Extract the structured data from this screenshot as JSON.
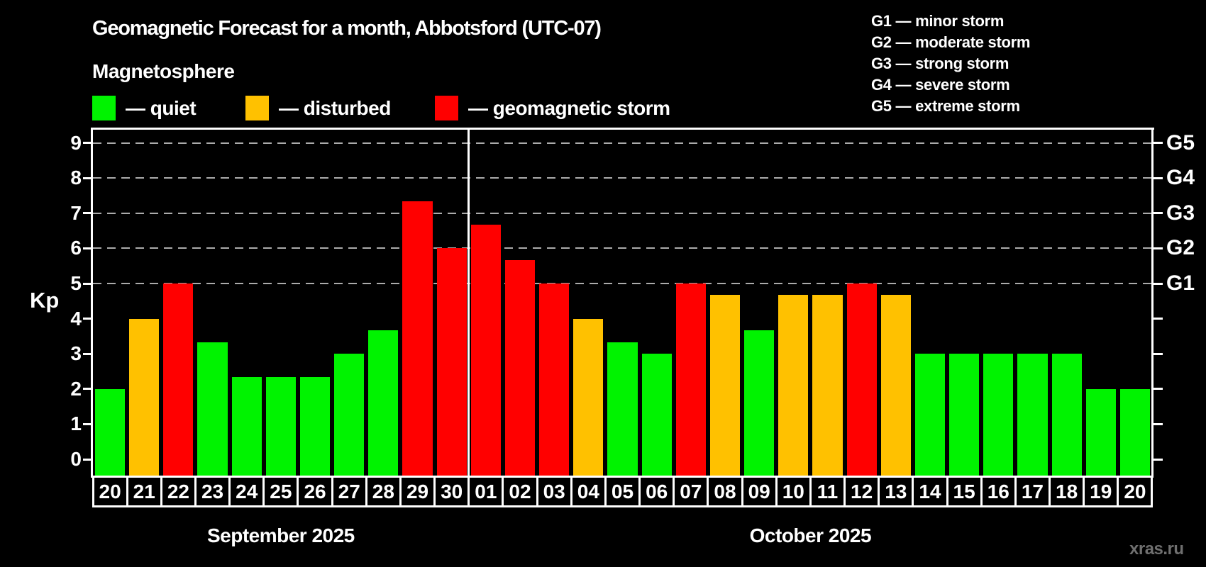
{
  "header": {
    "title": "Geomagnetic Forecast for a month, Abbotsford (UTC-07)",
    "subtitle": "Magnetosphere"
  },
  "legend": {
    "items": [
      {
        "key": "quiet",
        "label": "— quiet",
        "color": "#00f300"
      },
      {
        "key": "disturbed",
        "label": "— disturbed",
        "color": "#ffc100"
      },
      {
        "key": "storm",
        "label": "— geomagnetic storm",
        "color": "#ff0000"
      }
    ]
  },
  "g_legend": {
    "items": [
      "G1 — minor storm",
      "G2 — moderate storm",
      "G3 — strong storm",
      "G4 — severe storm",
      "G5 — extreme storm"
    ]
  },
  "chart_data": {
    "type": "bar",
    "ylabel": "Kp",
    "ylim": [
      0,
      9.4
    ],
    "y_ticks": [
      "0",
      "1",
      "2",
      "3",
      "4",
      "5",
      "6",
      "7",
      "8",
      "9"
    ],
    "gridline_kp": [
      5,
      6,
      7,
      8,
      9
    ],
    "grid": "dashed, only at Kp 5-9",
    "right_axis_labels": [
      {
        "kp": 5,
        "label": "G1"
      },
      {
        "kp": 6,
        "label": "G2"
      },
      {
        "kp": 7,
        "label": "G3"
      },
      {
        "kp": 8,
        "label": "G4"
      },
      {
        "kp": 9,
        "label": "G5"
      }
    ],
    "status_colors": {
      "quiet": "#00f300",
      "disturbed": "#ffc100",
      "storm": "#ff0000"
    },
    "months": [
      {
        "label": "September 2025",
        "from": 0,
        "to": 10
      },
      {
        "label": "October 2025",
        "from": 11,
        "to": 30
      }
    ],
    "month_separator_before_index": 11,
    "days": [
      {
        "day": "20",
        "kp": 2,
        "status": "quiet"
      },
      {
        "day": "21",
        "kp": 4,
        "status": "disturbed"
      },
      {
        "day": "22",
        "kp": 5,
        "status": "storm"
      },
      {
        "day": "23",
        "kp": 3.33,
        "status": "quiet"
      },
      {
        "day": "24",
        "kp": 2.33,
        "status": "quiet"
      },
      {
        "day": "25",
        "kp": 2.33,
        "status": "quiet"
      },
      {
        "day": "26",
        "kp": 2.33,
        "status": "quiet"
      },
      {
        "day": "27",
        "kp": 3,
        "status": "quiet"
      },
      {
        "day": "28",
        "kp": 3.67,
        "status": "quiet"
      },
      {
        "day": "29",
        "kp": 7.33,
        "status": "storm"
      },
      {
        "day": "30",
        "kp": 6,
        "status": "storm"
      },
      {
        "day": "01",
        "kp": 6.67,
        "status": "storm"
      },
      {
        "day": "02",
        "kp": 5.67,
        "status": "storm"
      },
      {
        "day": "03",
        "kp": 5,
        "status": "storm"
      },
      {
        "day": "04",
        "kp": 4,
        "status": "disturbed"
      },
      {
        "day": "05",
        "kp": 3.33,
        "status": "quiet"
      },
      {
        "day": "06",
        "kp": 3,
        "status": "quiet"
      },
      {
        "day": "07",
        "kp": 5,
        "status": "storm"
      },
      {
        "day": "08",
        "kp": 4.67,
        "status": "disturbed"
      },
      {
        "day": "09",
        "kp": 3.67,
        "status": "quiet"
      },
      {
        "day": "10",
        "kp": 4.67,
        "status": "disturbed"
      },
      {
        "day": "11",
        "kp": 4.67,
        "status": "disturbed"
      },
      {
        "day": "12",
        "kp": 5,
        "status": "storm"
      },
      {
        "day": "13",
        "kp": 4.67,
        "status": "disturbed"
      },
      {
        "day": "14",
        "kp": 3,
        "status": "quiet"
      },
      {
        "day": "15",
        "kp": 3,
        "status": "quiet"
      },
      {
        "day": "16",
        "kp": 3,
        "status": "quiet"
      },
      {
        "day": "17",
        "kp": 3,
        "status": "quiet"
      },
      {
        "day": "18",
        "kp": 3,
        "status": "quiet"
      },
      {
        "day": "19",
        "kp": 2,
        "status": "quiet"
      },
      {
        "day": "20",
        "kp": 2,
        "status": "quiet"
      }
    ]
  },
  "watermark": "xras.ru",
  "colors": {
    "background": "#000000",
    "axis": "#ffffff",
    "gridline": "#ababab",
    "quiet": "#00f300",
    "disturbed": "#ffc100",
    "storm": "#ff0000",
    "watermark_text": "#6f6f6f"
  }
}
